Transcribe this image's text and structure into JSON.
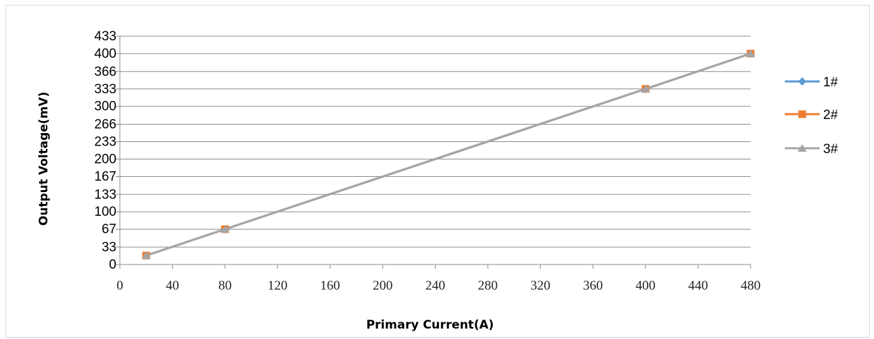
{
  "chart_data": {
    "type": "line",
    "title": "",
    "xlabel": "Primary Current(A)",
    "ylabel": "Output Voltage(mV)",
    "xlim": [
      0,
      480
    ],
    "ylim": [
      0,
      433
    ],
    "x_ticks": [
      "0",
      "40",
      "80",
      "120",
      "160",
      "200",
      "240",
      "280",
      "320",
      "360",
      "400",
      "440",
      "480"
    ],
    "y_ticks": [
      "0",
      "33",
      "67",
      "100",
      "133",
      "167",
      "200",
      "233",
      "266",
      "300",
      "333",
      "366",
      "400",
      "433"
    ],
    "grid": "horizontal",
    "legend_position": "right",
    "series": [
      {
        "name": "1#",
        "color": "#5b9bd5",
        "marker": "diamond",
        "x": [
          20,
          80,
          400,
          480
        ],
        "y": [
          17,
          67,
          333,
          400
        ]
      },
      {
        "name": "2#",
        "color": "#ed7d31",
        "marker": "square",
        "x": [
          20,
          80,
          400,
          480
        ],
        "y": [
          17,
          67,
          333,
          400
        ]
      },
      {
        "name": "3#",
        "color": "#a5a5a5",
        "marker": "triangle",
        "x": [
          20,
          80,
          400,
          480
        ],
        "y": [
          17,
          67,
          333,
          400
        ]
      }
    ]
  }
}
